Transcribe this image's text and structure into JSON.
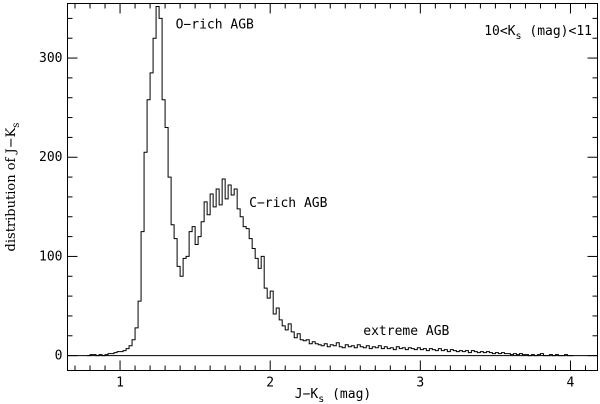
{
  "chart_data": {
    "type": "histogram",
    "title": "",
    "xlabel": {
      "main": "J−K",
      "sub": "s",
      "tail": " (mag)"
    },
    "ylabel": {
      "main": "distribution of J−K",
      "sub": "s"
    },
    "xlim": [
      0.65,
      4.18
    ],
    "ylim": [
      -15,
      355
    ],
    "bin_width": 0.02,
    "x_ticks": [
      1,
      2,
      3,
      4
    ],
    "x_tick_labels": [
      "1",
      "2",
      "3",
      "4"
    ],
    "y_ticks": [
      0,
      100,
      200,
      300
    ],
    "y_tick_labels": [
      "0",
      "100",
      "200",
      "300"
    ],
    "grid": false,
    "zero_line": true,
    "series": [
      {
        "bins": [
          [
            0.78,
            0
          ],
          [
            0.8,
            1
          ],
          [
            0.82,
            1
          ],
          [
            0.84,
            0
          ],
          [
            0.86,
            1
          ],
          [
            0.88,
            0
          ],
          [
            0.9,
            1
          ],
          [
            0.92,
            2
          ],
          [
            0.94,
            2
          ],
          [
            0.96,
            3
          ],
          [
            0.98,
            4
          ],
          [
            1.0,
            4
          ],
          [
            1.02,
            5
          ],
          [
            1.04,
            7
          ],
          [
            1.06,
            10
          ],
          [
            1.08,
            16
          ],
          [
            1.1,
            28
          ],
          [
            1.12,
            55
          ],
          [
            1.14,
            125
          ],
          [
            1.16,
            205
          ],
          [
            1.18,
            258
          ],
          [
            1.2,
            285
          ],
          [
            1.22,
            320
          ],
          [
            1.24,
            352
          ],
          [
            1.26,
            340
          ],
          [
            1.28,
            258
          ],
          [
            1.3,
            230
          ],
          [
            1.32,
            180
          ],
          [
            1.34,
            132
          ],
          [
            1.36,
            118
          ],
          [
            1.38,
            90
          ],
          [
            1.4,
            80
          ],
          [
            1.42,
            98
          ],
          [
            1.44,
            100
          ],
          [
            1.46,
            125
          ],
          [
            1.48,
            130
          ],
          [
            1.5,
            112
          ],
          [
            1.52,
            120
          ],
          [
            1.54,
            135
          ],
          [
            1.56,
            155
          ],
          [
            1.58,
            142
          ],
          [
            1.6,
            163
          ],
          [
            1.62,
            150
          ],
          [
            1.64,
            168
          ],
          [
            1.66,
            152
          ],
          [
            1.68,
            178
          ],
          [
            1.7,
            158
          ],
          [
            1.72,
            172
          ],
          [
            1.74,
            162
          ],
          [
            1.76,
            168
          ],
          [
            1.78,
            148
          ],
          [
            1.8,
            140
          ],
          [
            1.82,
            130
          ],
          [
            1.84,
            128
          ],
          [
            1.86,
            118
          ],
          [
            1.88,
            108
          ],
          [
            1.9,
            98
          ],
          [
            1.92,
            88
          ],
          [
            1.94,
            100
          ],
          [
            1.96,
            68
          ],
          [
            1.98,
            58
          ],
          [
            2.0,
            65
          ],
          [
            2.02,
            42
          ],
          [
            2.04,
            48
          ],
          [
            2.06,
            36
          ],
          [
            2.08,
            30
          ],
          [
            2.1,
            26
          ],
          [
            2.12,
            32
          ],
          [
            2.14,
            24
          ],
          [
            2.16,
            18
          ],
          [
            2.18,
            22
          ],
          [
            2.2,
            16
          ],
          [
            2.22,
            15
          ],
          [
            2.24,
            16
          ],
          [
            2.26,
            12
          ],
          [
            2.28,
            14
          ],
          [
            2.3,
            12
          ],
          [
            2.32,
            11
          ],
          [
            2.34,
            10
          ],
          [
            2.36,
            12
          ],
          [
            2.38,
            9
          ],
          [
            2.4,
            11
          ],
          [
            2.42,
            10
          ],
          [
            2.44,
            13
          ],
          [
            2.46,
            9
          ],
          [
            2.48,
            8
          ],
          [
            2.5,
            11
          ],
          [
            2.52,
            9
          ],
          [
            2.54,
            10
          ],
          [
            2.56,
            8
          ],
          [
            2.58,
            11
          ],
          [
            2.6,
            9
          ],
          [
            2.62,
            8
          ],
          [
            2.64,
            10
          ],
          [
            2.66,
            7
          ],
          [
            2.68,
            9
          ],
          [
            2.7,
            8
          ],
          [
            2.72,
            10
          ],
          [
            2.74,
            7
          ],
          [
            2.76,
            9
          ],
          [
            2.78,
            7
          ],
          [
            2.8,
            8
          ],
          [
            2.82,
            6
          ],
          [
            2.84,
            9
          ],
          [
            2.86,
            7
          ],
          [
            2.88,
            8
          ],
          [
            2.9,
            6
          ],
          [
            2.92,
            8
          ],
          [
            2.94,
            7
          ],
          [
            2.96,
            6
          ],
          [
            2.98,
            8
          ],
          [
            3.0,
            6
          ],
          [
            3.02,
            7
          ],
          [
            3.04,
            5
          ],
          [
            3.06,
            7
          ],
          [
            3.08,
            6
          ],
          [
            3.1,
            5
          ],
          [
            3.12,
            7
          ],
          [
            3.14,
            5
          ],
          [
            3.16,
            6
          ],
          [
            3.18,
            4
          ],
          [
            3.2,
            6
          ],
          [
            3.22,
            5
          ],
          [
            3.24,
            4
          ],
          [
            3.26,
            5
          ],
          [
            3.28,
            4
          ],
          [
            3.3,
            5
          ],
          [
            3.32,
            3
          ],
          [
            3.34,
            5
          ],
          [
            3.36,
            4
          ],
          [
            3.38,
            3
          ],
          [
            3.4,
            4
          ],
          [
            3.42,
            3
          ],
          [
            3.44,
            4
          ],
          [
            3.46,
            3
          ],
          [
            3.48,
            2
          ],
          [
            3.5,
            3
          ],
          [
            3.52,
            2
          ],
          [
            3.54,
            3
          ],
          [
            3.56,
            2
          ],
          [
            3.58,
            2
          ],
          [
            3.6,
            1
          ],
          [
            3.62,
            2
          ],
          [
            3.64,
            1
          ],
          [
            3.66,
            2
          ],
          [
            3.68,
            1
          ],
          [
            3.7,
            1
          ],
          [
            3.72,
            0
          ],
          [
            3.74,
            1
          ],
          [
            3.76,
            0
          ],
          [
            3.78,
            1
          ],
          [
            3.8,
            2
          ],
          [
            3.82,
            0
          ],
          [
            3.84,
            0
          ],
          [
            3.86,
            1
          ],
          [
            3.88,
            0
          ],
          [
            3.9,
            1
          ],
          [
            3.92,
            0
          ],
          [
            3.94,
            0
          ],
          [
            3.96,
            1
          ],
          [
            3.98,
            0
          ],
          [
            4.0,
            0
          ]
        ]
      }
    ],
    "annotations": [
      {
        "name": "o-rich-agb",
        "text": "O−rich AGB",
        "x": 1.37,
        "y": 330
      },
      {
        "name": "c-rich-agb",
        "text": "C−rich AGB",
        "x": 1.86,
        "y": 150
      },
      {
        "name": "extreme-agb",
        "text": "extreme AGB",
        "x": 2.62,
        "y": 21
      }
    ],
    "corner_label": {
      "main": "10<K",
      "sub": "s",
      "tail": " (mag)<11",
      "position": "top-right"
    }
  }
}
